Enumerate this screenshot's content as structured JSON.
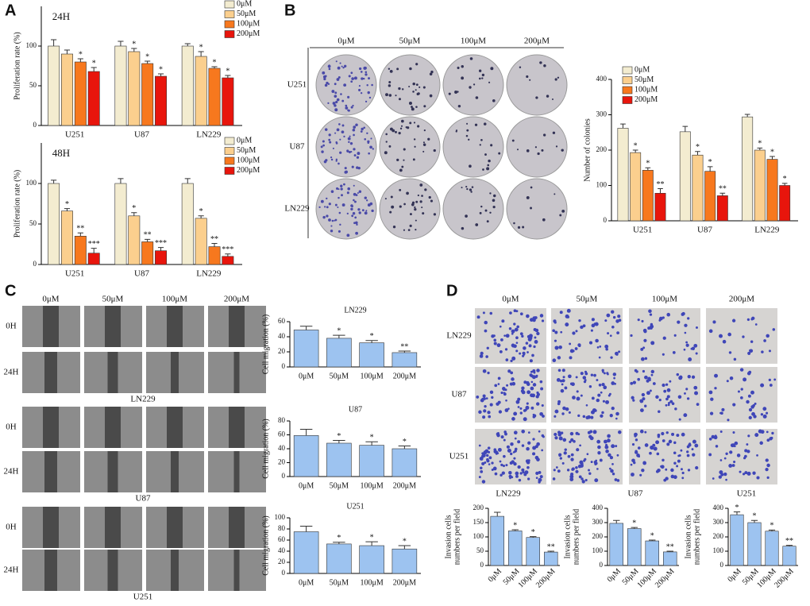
{
  "panel_letters": [
    "A",
    "B",
    "C",
    "D"
  ],
  "colonies": {
    "columns": [
      "0μM",
      "50μM",
      "100μM",
      "200μM"
    ],
    "rows": [
      "U251",
      "U87",
      "LN229"
    ]
  },
  "wound": {
    "columns": [
      "0μM",
      "50μM",
      "100μM",
      "200μM"
    ],
    "times": [
      "0H",
      "24H",
      "0H",
      "24H",
      "0H",
      "24H"
    ],
    "cells": [
      "LN229",
      "U87",
      "U251"
    ]
  },
  "invasion": {
    "columns": [
      "0μM",
      "50μM",
      "100μM",
      "200μM"
    ],
    "rows": [
      "LN229",
      "U87",
      "U251"
    ],
    "cells": [
      "LN229",
      "U87",
      "U251"
    ]
  },
  "chart_data": [
    {
      "type": "grouped-bar",
      "title": "24H",
      "ylabel": "Proliferation rate (%)",
      "categories": [
        "U251",
        "U87",
        "LN229"
      ],
      "ylim": [
        0,
        150
      ],
      "yticks": [
        0,
        50,
        100
      ],
      "legend": "upper right",
      "series": [
        {
          "name": "0μM",
          "color": "#f3ecd0",
          "values": [
            100,
            100,
            100
          ],
          "errors": [
            8,
            6,
            3
          ],
          "significance": [
            null,
            null,
            null
          ]
        },
        {
          "name": "50μM",
          "color": "#fbcf8e",
          "values": [
            90,
            93,
            87
          ],
          "errors": [
            5,
            4,
            6
          ],
          "significance": [
            null,
            "*",
            "*"
          ]
        },
        {
          "name": "100μM",
          "color": "#f7781e",
          "values": [
            80,
            78,
            72
          ],
          "errors": [
            4,
            3,
            2
          ],
          "significance": [
            "*",
            "*",
            "*"
          ]
        },
        {
          "name": "200μM",
          "color": "#e8150c",
          "values": [
            68,
            62,
            60
          ],
          "errors": [
            5,
            3,
            3
          ],
          "significance": [
            "*",
            "*",
            "*"
          ]
        }
      ]
    },
    {
      "type": "grouped-bar",
      "title": "48H",
      "ylabel": "Proliferation rate (%)",
      "categories": [
        "U251",
        "U87",
        "LN229"
      ],
      "ylim": [
        0,
        150
      ],
      "yticks": [
        0,
        50,
        100
      ],
      "legend": "upper right",
      "series": [
        {
          "name": "0μM",
          "color": "#f3ecd0",
          "values": [
            100,
            100,
            100
          ],
          "errors": [
            4,
            6,
            6
          ],
          "significance": [
            null,
            null,
            null
          ]
        },
        {
          "name": "50μM",
          "color": "#fbcf8e",
          "values": [
            66,
            60,
            57
          ],
          "errors": [
            3,
            4,
            3
          ],
          "significance": [
            "*",
            "*",
            "*"
          ]
        },
        {
          "name": "100μM",
          "color": "#f7781e",
          "values": [
            35,
            28,
            22
          ],
          "errors": [
            4,
            3,
            4
          ],
          "significance": [
            "**",
            "**",
            "**"
          ]
        },
        {
          "name": "200μM",
          "color": "#e8150c",
          "values": [
            14,
            17,
            10
          ],
          "errors": [
            6,
            4,
            3
          ],
          "significance": [
            "***",
            "***",
            "***"
          ]
        }
      ]
    },
    {
      "type": "grouped-bar",
      "ylabel": "Number of colonies",
      "categories": [
        "U251",
        "U87",
        "LN229"
      ],
      "ylim": [
        0,
        400
      ],
      "yticks": [
        0,
        100,
        200,
        300,
        400
      ],
      "legend": "upper left",
      "series": [
        {
          "name": "0μM",
          "color": "#f3ecd0",
          "values": [
            262,
            252,
            294
          ],
          "errors": [
            12,
            15,
            7
          ],
          "significance": [
            null,
            null,
            null
          ]
        },
        {
          "name": "50μM",
          "color": "#fbcf8e",
          "values": [
            193,
            186,
            200
          ],
          "errors": [
            7,
            10,
            6
          ],
          "significance": [
            "*",
            "*",
            "*"
          ]
        },
        {
          "name": "100μM",
          "color": "#f7781e",
          "values": [
            143,
            140,
            174
          ],
          "errors": [
            7,
            13,
            8
          ],
          "significance": [
            "*",
            "*",
            "*"
          ]
        },
        {
          "name": "200μM",
          "color": "#e8150c",
          "values": [
            78,
            71,
            100
          ],
          "errors": [
            13,
            7,
            6
          ],
          "significance": [
            "**",
            "**",
            "*"
          ]
        }
      ]
    },
    {
      "type": "bar",
      "title": "LN229",
      "ylabel": "Cell migration (%)",
      "categories": [
        "0μM",
        "50μM",
        "100μM",
        "200μM"
      ],
      "color": "#9dc3f0",
      "values": [
        49,
        38,
        32,
        19
      ],
      "errors": [
        5,
        4,
        3,
        2
      ],
      "significance": [
        null,
        "*",
        "*",
        "**"
      ],
      "ylim": [
        0,
        60
      ],
      "yticks": [
        0,
        20,
        40,
        60
      ]
    },
    {
      "type": "bar",
      "title": "U87",
      "ylabel": "Cell migration (%)",
      "categories": [
        "0μM",
        "50μM",
        "100μM",
        "200μM"
      ],
      "color": "#9dc3f0",
      "values": [
        59,
        48,
        45,
        40
      ],
      "errors": [
        9,
        4,
        5,
        4
      ],
      "significance": [
        null,
        "*",
        "*",
        "*"
      ],
      "ylim": [
        0,
        80
      ],
      "yticks": [
        0,
        20,
        40,
        60,
        80
      ]
    },
    {
      "type": "bar",
      "title": "U251",
      "ylabel": "Cell migration (%)",
      "categories": [
        "0μM",
        "50μM",
        "100μM",
        "200μM"
      ],
      "color": "#9dc3f0",
      "values": [
        75,
        53,
        50,
        44
      ],
      "errors": [
        10,
        3,
        7,
        6
      ],
      "significance": [
        null,
        "*",
        "*",
        "*"
      ],
      "ylim": [
        0,
        100
      ],
      "yticks": [
        0,
        20,
        40,
        60,
        80,
        100
      ]
    },
    {
      "type": "bar",
      "ylabel": [
        "Invasion cells",
        "numbers per field"
      ],
      "categories": [
        "0μM",
        "50μM",
        "100μM",
        "200μM"
      ],
      "color": "#9dc3f0",
      "xtick_rotation": -45,
      "values": [
        172,
        121,
        98,
        47
      ],
      "errors": [
        14,
        4,
        3,
        3
      ],
      "significance": [
        null,
        "*",
        "*",
        "**"
      ],
      "ylim": [
        0,
        200
      ],
      "yticks": [
        0,
        50,
        100,
        150,
        200
      ]
    },
    {
      "type": "bar",
      "ylabel": [
        "Invasion cells",
        "numbers per field"
      ],
      "categories": [
        "0μM",
        "50μM",
        "100μM",
        "200μM"
      ],
      "color": "#9dc3f0",
      "xtick_rotation": -45,
      "values": [
        295,
        258,
        172,
        95
      ],
      "errors": [
        20,
        8,
        6,
        5
      ],
      "significance": [
        null,
        "*",
        "*",
        "**"
      ],
      "ylim": [
        0,
        400
      ],
      "yticks": [
        0,
        100,
        200,
        300,
        400
      ]
    },
    {
      "type": "bar",
      "ylabel": [
        "Invasion cells",
        "numbers per field"
      ],
      "categories": [
        "0μM",
        "50μM",
        "100μM",
        "200μM"
      ],
      "color": "#9dc3f0",
      "xtick_rotation": -45,
      "values": [
        355,
        300,
        240,
        135
      ],
      "errors": [
        20,
        15,
        8,
        6
      ],
      "significance": [
        "*",
        "*",
        "*",
        "**"
      ],
      "ylim": [
        0,
        400
      ],
      "yticks": [
        0,
        100,
        200,
        300,
        400
      ]
    }
  ]
}
